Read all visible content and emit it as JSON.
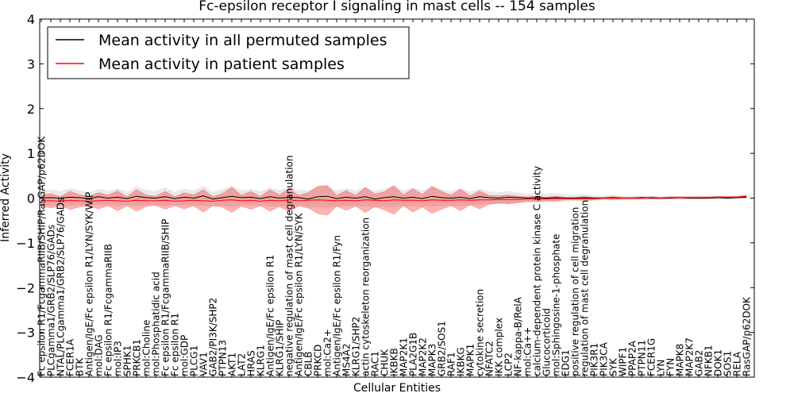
{
  "chart_data": {
    "type": "line",
    "title": "Fc-epsilon receptor I signaling in mast cells -- 154 samples",
    "xlabel": "Cellular Entities",
    "ylabel": "Inferred Activity",
    "ylim": [
      -4,
      4
    ],
    "yticks": [
      -4,
      -3,
      -2,
      -1,
      0,
      1,
      2,
      3,
      4
    ],
    "grid": false,
    "legend_position": "top-left",
    "categories": [
      "Fc epsilon R1/FcgammaRIIB/SHIP/RasGAP/p62DOK",
      "PLCgamma1/GRB2/SLP76/GADs",
      "NTAL/PLCgamma1/GRB2/SLP76/GADs",
      "FCER1A",
      "BTK",
      "Antigen/IgE/Fc epsilon R1/LYN/SYK/WIP",
      "mol:DAG",
      "Fc epsilon R1/FcgammaRIIB",
      "mol:IP3",
      "SPHK1",
      "PRKCB1",
      "mol:Choline",
      "mol:Phosphatidic acid",
      "Fc epsilon R1/FcgammaRIIB/SHIP",
      "Fc epsilon R1",
      "mol:GDP",
      "PLCG1",
      "VAV1",
      "GAB2/PI3K/SHP2",
      "PTPN13",
      "AKT1",
      "LAT2",
      "HRAS",
      "KLRG1",
      "Antigen/IgE/Fc epsilon R1",
      "KLRG1/SHIP",
      "negative regulation of mast cell degranulation",
      "Antigen/IgE/Fc epsilon R1/LYN/SYK",
      "CBLB",
      "PRKCD",
      "mol:Ca2+",
      "Antigen/IgE/Fc epsilon R1/Fyn",
      "MS4A2",
      "KLRG1/SHP2",
      "actin cytoskeleton reorganization",
      "RAC1",
      "CHUK",
      "IKBKB",
      "MAP2K1",
      "PLA2G1B",
      "MAP2K2",
      "MAPK3",
      "GRB2/SOS1",
      "RAF1",
      "IKBKG",
      "MAPK1",
      "cytokine secretion",
      "NFATC2",
      "IKK complex",
      "LCP2",
      "NF-kappa-B/RelA",
      "mol:Ca++",
      "calcium-dependent protein kinase C activity",
      "Glucocorticoid",
      "mol:Sphingosine-1-phosphate",
      "EDG1",
      "positive regulation of cell migration",
      "regulation of mast cell degranulation",
      "PIK3R1",
      "PIK3CA",
      "SYK",
      "WIPF1",
      "PPAP2A",
      "PTPN11",
      "FCER1G",
      "LYN",
      "FYN",
      "MAPK8",
      "MAP2K7",
      "GAB2",
      "NFKB1",
      "DOK1",
      "SOS1",
      "RELA",
      "RasGAP/p62DOK"
    ],
    "series": [
      {
        "name": "Mean activity in all permuted samples",
        "color": "#000000",
        "values": [
          0,
          0.01,
          0,
          0.02,
          0.01,
          -0.01,
          0.03,
          0,
          0.02,
          -0.01,
          0.04,
          0.01,
          0,
          0.03,
          -0.01,
          0.02,
          0,
          0.05,
          -0.02,
          0.01,
          0.04,
          0.01,
          0.02,
          -0.01,
          0.03,
          0,
          0.02,
          0.01,
          -0.02,
          0.03,
          0.04,
          -0.01,
          0.02,
          0,
          0.03,
          -0.02,
          0.01,
          0.03,
          0,
          0.02,
          -0.01,
          0.04,
          0.01,
          0,
          0.02,
          -0.01,
          0.03,
          0.01,
          0,
          0.02,
          0.01,
          0,
          0.01,
          0,
          0.01,
          0,
          0,
          0.01,
          0,
          0,
          0.01,
          0,
          0,
          0.01,
          0,
          0,
          0,
          0.01,
          0,
          0,
          0,
          0.01,
          0,
          0.01,
          0.02
        ],
        "band": [
          0.16,
          0.18,
          0.15,
          0.2,
          0.17,
          0.14,
          0.18,
          0.16,
          0.2,
          0.15,
          0.22,
          0.17,
          0.16,
          0.21,
          0.15,
          0.19,
          0.17,
          0.22,
          0.16,
          0.18,
          0.24,
          0.17,
          0.19,
          0.16,
          0.21,
          0.18,
          0.22,
          0.17,
          0.19,
          0.23,
          0.25,
          0.18,
          0.2,
          0.17,
          0.22,
          0.18,
          0.2,
          0.24,
          0.17,
          0.21,
          0.18,
          0.23,
          0.19,
          0.16,
          0.2,
          0.15,
          0.18,
          0.14,
          0.13,
          0.14,
          0.12,
          0.1,
          0.11,
          0.09,
          0.1,
          0.08,
          0.07,
          0.08,
          0.06,
          0.05,
          0.06,
          0.05,
          0.04,
          0.05,
          0.04,
          0.04,
          0.03,
          0.04,
          0.03,
          0.03,
          0.03,
          0.04,
          0.03,
          0.04,
          0.05
        ]
      },
      {
        "name": "Mean activity in patient samples",
        "color": "#ff0000",
        "values": [
          -0.06,
          -0.06,
          -0.07,
          -0.05,
          -0.06,
          -0.07,
          -0.06,
          -0.05,
          -0.06,
          -0.07,
          -0.05,
          -0.06,
          -0.06,
          -0.05,
          -0.07,
          -0.06,
          -0.05,
          -0.06,
          -0.07,
          -0.05,
          -0.04,
          -0.06,
          -0.05,
          -0.07,
          -0.05,
          -0.06,
          -0.04,
          -0.06,
          -0.05,
          -0.04,
          -0.05,
          -0.06,
          -0.05,
          -0.06,
          -0.04,
          -0.05,
          -0.06,
          -0.04,
          -0.05,
          -0.05,
          -0.06,
          -0.04,
          -0.05,
          -0.05,
          -0.04,
          -0.05,
          -0.04,
          -0.04,
          -0.03,
          -0.03,
          -0.03,
          -0.02,
          -0.02,
          -0.02,
          -0.01,
          -0.01,
          -0.01,
          -0.01,
          -0.01,
          0,
          0,
          0,
          0,
          0,
          0.01,
          0,
          0.01,
          0.01,
          0.01,
          0.01,
          0.01,
          0.02,
          0.02,
          0.02,
          0.04
        ],
        "band": [
          0.12,
          0.16,
          0.1,
          0.2,
          0.14,
          0.1,
          0.18,
          0.12,
          0.22,
          0.1,
          0.24,
          0.13,
          0.1,
          0.2,
          0.1,
          0.18,
          0.12,
          0.25,
          0.1,
          0.15,
          0.28,
          0.12,
          0.2,
          0.1,
          0.24,
          0.13,
          0.26,
          0.12,
          0.17,
          0.3,
          0.33,
          0.12,
          0.22,
          0.12,
          0.28,
          0.14,
          0.2,
          0.32,
          0.12,
          0.26,
          0.14,
          0.3,
          0.2,
          0.12,
          0.24,
          0.1,
          0.2,
          0.1,
          0.08,
          0.1,
          0.07,
          0.05,
          0.06,
          0.04,
          0.05,
          0.03,
          0.03,
          0.04,
          0.03,
          0.02,
          0.03,
          0.02,
          0.02,
          0.02,
          0.02,
          0.02,
          0.02,
          0.02,
          0.02,
          0.02,
          0.02,
          0.02,
          0.02,
          0.02,
          0.03
        ]
      }
    ]
  }
}
